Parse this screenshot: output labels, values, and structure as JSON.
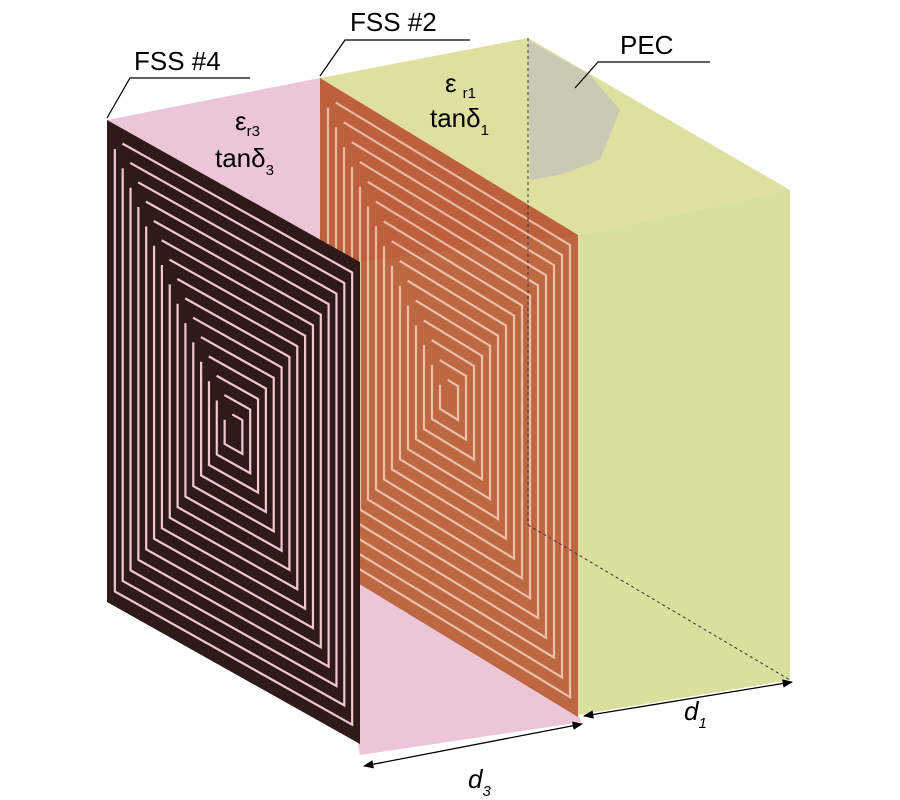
{
  "labels": {
    "fss4": "FSS #4",
    "fss2": "FSS #2",
    "pec": "PEC"
  },
  "materials": [
    {
      "eps": "ε",
      "eps_sub": "r3",
      "tan": "tanδ",
      "tan_sub": "3"
    },
    {
      "eps": "ε",
      "eps_sub": "r1",
      "tan": "tanδ",
      "tan_sub": "1"
    }
  ],
  "dimensions": [
    {
      "symbol": "d",
      "sub": "3"
    },
    {
      "symbol": "d",
      "sub": "1"
    }
  ]
}
